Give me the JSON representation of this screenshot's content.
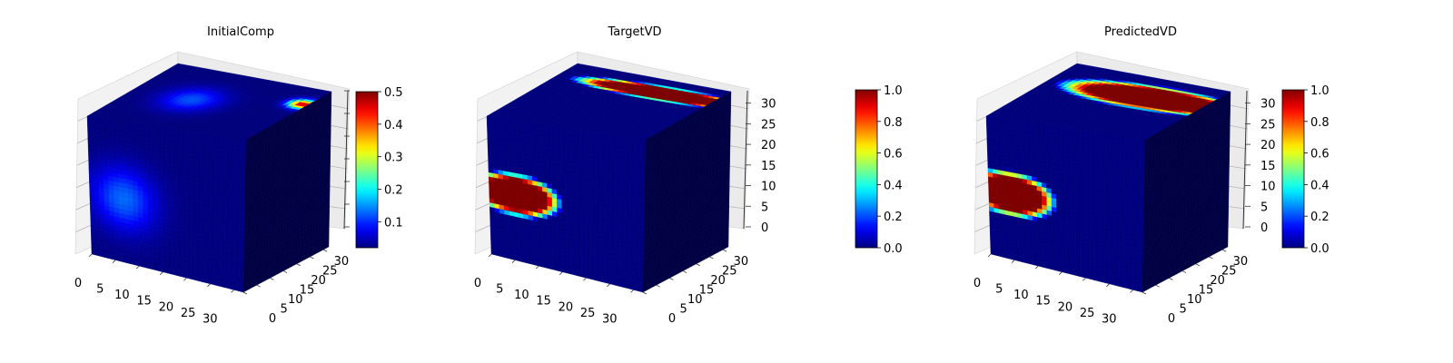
{
  "chart_data": [
    {
      "type": "voxel-3d",
      "title": "InitialComp",
      "colormap": "jet",
      "x_ticks": [
        0,
        5,
        10,
        15,
        20,
        25,
        30
      ],
      "y_ticks": [
        0,
        5,
        10,
        15,
        20,
        25,
        30
      ],
      "z_ticks": [],
      "zlim": [
        0,
        33
      ],
      "colorbar": {
        "range": [
          0.02,
          0.5
        ],
        "ticks": [
          0.1,
          0.2,
          0.3,
          0.4,
          0.5
        ],
        "tick_labels": [
          "0.1",
          "0.2",
          "0.3",
          "0.4",
          "0.5"
        ]
      },
      "blobs": [
        {
          "face": "front",
          "center": [
            0.22,
            0.45
          ],
          "radius": [
            0.26,
            0.28
          ],
          "value": 0.13
        },
        {
          "face": "top",
          "center": [
            0.38,
            0.5
          ],
          "radius": [
            0.22,
            0.25
          ],
          "value": 0.12
        },
        {
          "face": "top",
          "center": [
            0.97,
            0.72
          ],
          "radius": [
            0.1,
            0.1
          ],
          "value": 0.48
        }
      ],
      "base_value": 0.02
    },
    {
      "type": "voxel-3d",
      "title": "TargetVD",
      "colormap": "jet",
      "x_ticks": [
        0,
        5,
        10,
        15,
        20,
        25,
        30
      ],
      "y_ticks": [
        0,
        5,
        10,
        15,
        20,
        25,
        30
      ],
      "z_ticks": [
        0,
        5,
        10,
        15,
        20,
        25,
        30
      ],
      "zlim": [
        0,
        33
      ],
      "colorbar": {
        "range": [
          0,
          1
        ],
        "ticks": [
          0,
          0.2,
          0.4,
          0.6,
          0.8,
          1.0
        ],
        "tick_labels": [
          "0.0",
          "0.2",
          "0.4",
          "0.6",
          "0.8",
          "1.0"
        ]
      },
      "blobs": [
        {
          "face": "front",
          "center": [
            0.17,
            0.47
          ],
          "radius": [
            0.27,
            0.14
          ],
          "value": 1.0
        },
        {
          "face": "top",
          "center": [
            0.7,
            0.78
          ],
          "radius": [
            0.55,
            0.11
          ],
          "value": 1.0
        }
      ],
      "base_value": 0.0
    },
    {
      "type": "voxel-3d",
      "title": "PredictedVD",
      "colormap": "jet",
      "x_ticks": [
        0,
        5,
        10,
        15,
        20,
        25,
        30
      ],
      "y_ticks": [
        0,
        5,
        10,
        15,
        20,
        25,
        30
      ],
      "z_ticks": [
        0,
        5,
        10,
        15,
        20,
        25,
        30
      ],
      "zlim": [
        0,
        33
      ],
      "colorbar": {
        "range": [
          0,
          1
        ],
        "ticks": [
          0,
          0.2,
          0.4,
          0.6,
          0.8,
          1.0
        ],
        "tick_labels": [
          "0.0",
          "0.2",
          "0.4",
          "0.6",
          "0.8",
          "1.0"
        ]
      },
      "blobs": [
        {
          "face": "front",
          "center": [
            0.14,
            0.47
          ],
          "radius": [
            0.27,
            0.15
          ],
          "value": 1.0
        },
        {
          "face": "top",
          "center": [
            0.68,
            0.68
          ],
          "radius": [
            0.55,
            0.19
          ],
          "value": 1.0
        }
      ],
      "base_value": 0.0
    }
  ]
}
